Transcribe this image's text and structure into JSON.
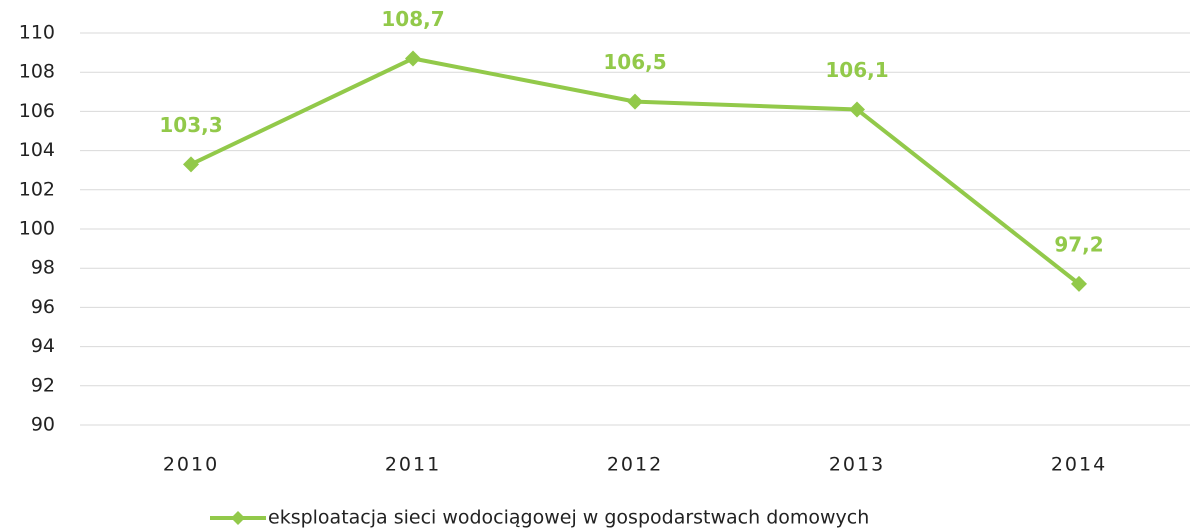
{
  "chart_data": {
    "type": "line",
    "categories": [
      "2010",
      "2011",
      "2012",
      "2013",
      "2014"
    ],
    "series": [
      {
        "name": "eksploatacja sieci wodociągowej w gospodarstwach domowych",
        "color": "#92c94a",
        "values": [
          103.3,
          108.7,
          106.5,
          106.1,
          97.2
        ],
        "value_labels": [
          "103,3",
          "108,7",
          "106,5",
          "106,1",
          "97,2"
        ]
      }
    ],
    "ylim": [
      90,
      110
    ],
    "yticks": [
      90,
      92,
      94,
      96,
      98,
      100,
      102,
      104,
      106,
      108,
      110
    ],
    "grid": true,
    "legend": "bottom"
  }
}
